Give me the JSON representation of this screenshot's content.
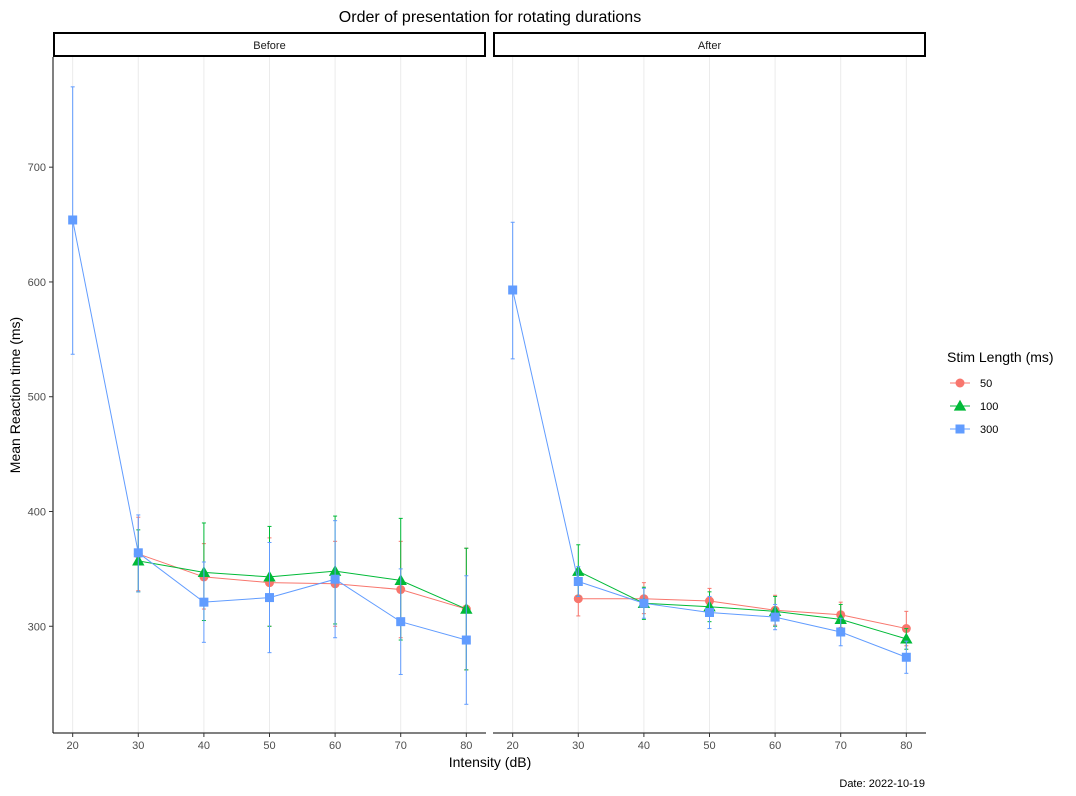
{
  "chart_data": {
    "type": "line",
    "title": "Order of presentation for rotating durations",
    "xlabel": "Intensity (dB)",
    "ylabel": "Mean Reaction time (ms)",
    "caption": "Date: 2022-10-19",
    "x": [
      20,
      30,
      40,
      50,
      60,
      70,
      80
    ],
    "x_ticks": [
      "20",
      "30",
      "40",
      "50",
      "60",
      "70",
      "80"
    ],
    "y_ticks": [
      300,
      400,
      500,
      600,
      700
    ],
    "y_tick_labels": [
      "300",
      "400",
      "500",
      "600",
      "700"
    ],
    "ylim": [
      207,
      796
    ],
    "xlim": [
      17,
      83
    ],
    "grid": "vertical-major",
    "legend": {
      "title": "Stim Length (ms)",
      "position": "right",
      "entries": [
        "50",
        "100",
        "300"
      ]
    },
    "colors": {
      "50": "#F8766D",
      "100": "#00BA38",
      "300": "#619CFF"
    },
    "markers": {
      "50": "circle",
      "100": "triangle",
      "300": "square"
    },
    "panels": [
      {
        "label": "Before",
        "series": [
          {
            "name": "50",
            "x": [
              30,
              40,
              50,
              60,
              70,
              80
            ],
            "y": [
              363,
              343,
              338,
              337,
              332,
              315
            ],
            "err_low": [
              331,
              315,
              300,
              300,
              290,
              262
            ],
            "err_high": [
              395,
              372,
              377,
              374,
              374,
              368
            ]
          },
          {
            "name": "100",
            "x": [
              30,
              40,
              50,
              60,
              70,
              80
            ],
            "y": [
              357,
              347,
              343,
              348,
              340,
              315
            ],
            "err_low": [
              330,
              305,
              300,
              302,
              288,
              262
            ],
            "err_high": [
              384,
              390,
              387,
              396,
              394,
              368
            ]
          },
          {
            "name": "300",
            "x": [
              20,
              30,
              40,
              50,
              60,
              70,
              80
            ],
            "y": [
              654,
              364,
              321,
              325,
              341,
              304,
              288
            ],
            "err_low": [
              537,
              330,
              286,
              277,
              290,
              258,
              232
            ],
            "err_high": [
              770,
              397,
              356,
              373,
              392,
              350,
              344
            ]
          }
        ]
      },
      {
        "label": "After",
        "series": [
          {
            "name": "50",
            "x": [
              30,
              40,
              50,
              60,
              70,
              80
            ],
            "y": [
              324,
              324,
              322,
              314,
              310,
              298
            ],
            "err_low": [
              309,
              311,
              312,
              301,
              299,
              283
            ],
            "err_high": [
              339,
              338,
              333,
              327,
              321,
              313
            ]
          },
          {
            "name": "100",
            "x": [
              30,
              40,
              50,
              60,
              70,
              80
            ],
            "y": [
              348,
              320,
              317,
              313,
              306,
              289
            ],
            "err_low": [
              326,
              306,
              304,
              300,
              293,
              280
            ],
            "err_high": [
              371,
              334,
              330,
              326,
              319,
              298
            ]
          },
          {
            "name": "300",
            "x": [
              20,
              30,
              40,
              50,
              60,
              70,
              80
            ],
            "y": [
              593,
              339,
              320,
              312,
              308,
              295,
              273
            ],
            "err_low": [
              533,
              326,
              307,
              298,
              297,
              283,
              259
            ],
            "err_high": [
              652,
              352,
              333,
              326,
              319,
              307,
              287
            ]
          }
        ]
      }
    ]
  }
}
